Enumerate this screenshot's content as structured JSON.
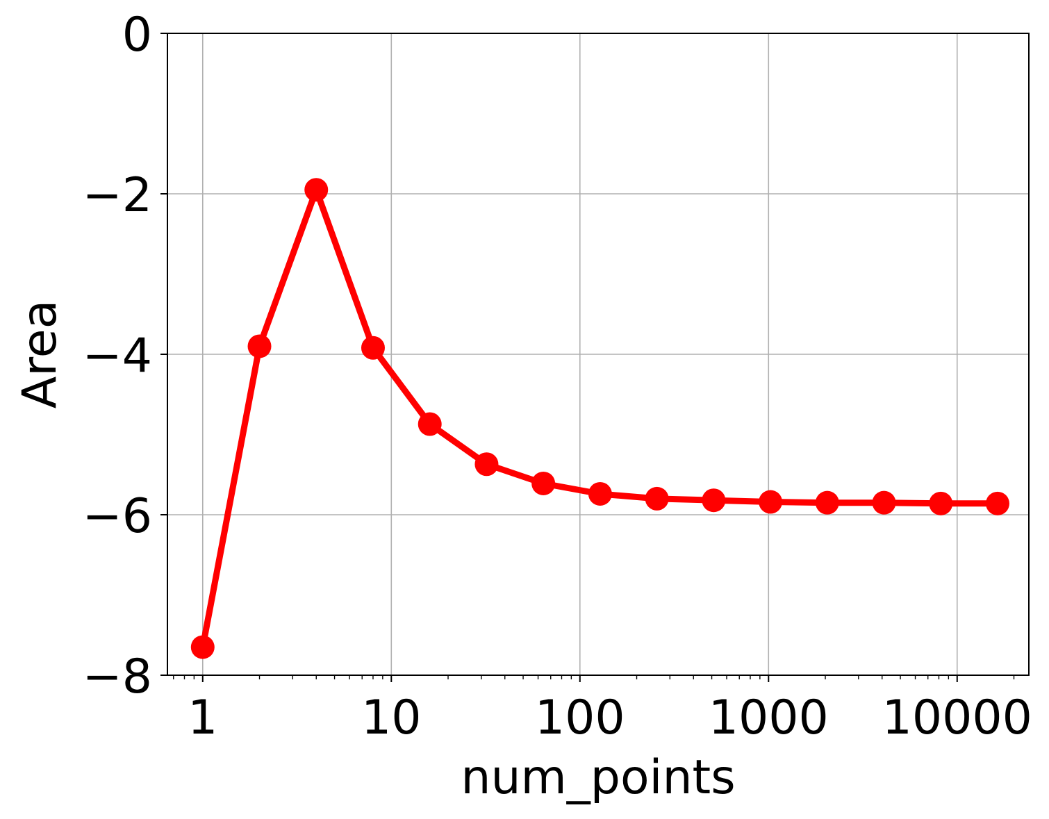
{
  "chart_data": {
    "type": "line",
    "title": "",
    "xlabel": "num_points",
    "ylabel": "Area",
    "x_scale": "log",
    "xlim": [
      0.65,
      24000
    ],
    "ylim": [
      -8,
      0
    ],
    "grid": true,
    "legend": "none",
    "x_ticks": [
      {
        "value": 1,
        "label": "1"
      },
      {
        "value": 10,
        "label": "10"
      },
      {
        "value": 100,
        "label": "100"
      },
      {
        "value": 1000,
        "label": "1000"
      },
      {
        "value": 10000,
        "label": "10000"
      }
    ],
    "y_ticks": [
      {
        "value": 0,
        "label": "0"
      },
      {
        "value": -2,
        "label": "−2"
      },
      {
        "value": -4,
        "label": "−4"
      },
      {
        "value": -6,
        "label": "−6"
      },
      {
        "value": -8,
        "label": "−8"
      }
    ],
    "series": [
      {
        "color": "#ff0000",
        "marker": "circle",
        "x": [
          1,
          2,
          4,
          8,
          16,
          32,
          64,
          128,
          256,
          512,
          1024,
          2048,
          4096,
          8192,
          16384
        ],
        "y": [
          -7.65,
          -3.9,
          -1.95,
          -3.92,
          -4.87,
          -5.37,
          -5.61,
          -5.74,
          -5.8,
          -5.82,
          -5.84,
          -5.85,
          -5.85,
          -5.86,
          -5.86
        ]
      }
    ]
  }
}
